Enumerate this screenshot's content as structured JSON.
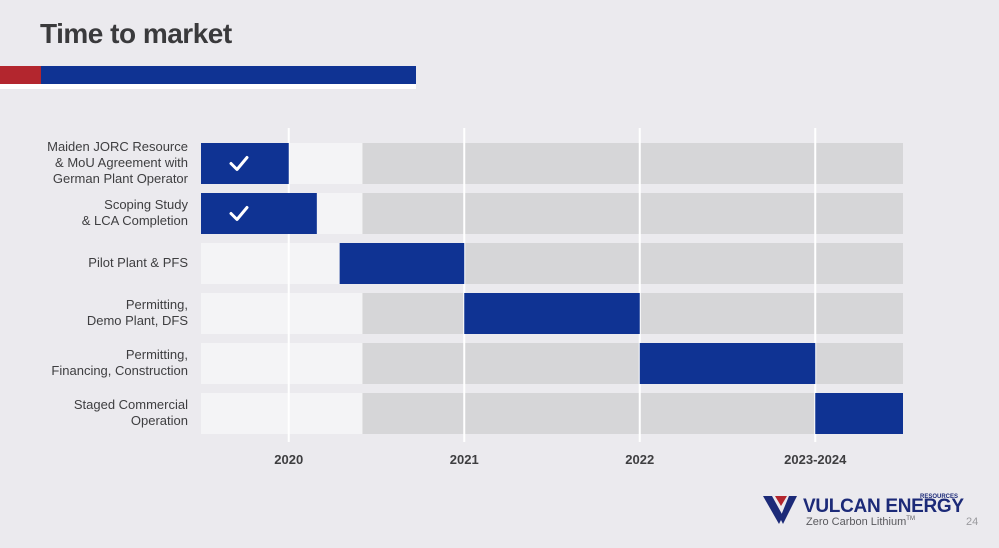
{
  "header": {
    "title": "Time to market"
  },
  "chart_data": {
    "type": "gantt",
    "x_axis": {
      "ticks": [
        "2020",
        "2021",
        "2022",
        "2023-2024"
      ],
      "range_start": 0.0,
      "range_end": 4.0,
      "tick_positions": [
        0.5,
        1.5,
        2.5,
        3.5
      ]
    },
    "baseline_end": 0.92,
    "tasks": [
      {
        "label": "Maiden JORC Resource\n& MoU Agreement with\nGerman Plant Operator",
        "start": 0.0,
        "end": 0.5,
        "completed": true
      },
      {
        "label": "Scoping Study\n& LCA Completion",
        "start": 0.0,
        "end": 0.66,
        "completed": true
      },
      {
        "label": "Pilot Plant & PFS",
        "start": 0.79,
        "end": 1.5,
        "completed": false
      },
      {
        "label": "Permitting,\nDemo Plant, DFS",
        "start": 1.5,
        "end": 2.5,
        "completed": false
      },
      {
        "label": "Permitting,\nFinancing, Construction",
        "start": 2.5,
        "end": 3.5,
        "completed": false
      },
      {
        "label": "Staged Commercial\nOperation",
        "start": 3.5,
        "end": 4.0,
        "completed": false
      }
    ],
    "colors": {
      "active": "#0f3393",
      "past": "#f4f4f6",
      "future": "#d6d6d8",
      "gridline": "#ffffff",
      "check": "#ffffff"
    }
  },
  "footer": {
    "brand": "VULCAN ENERGY",
    "brand_sub": "RESOURCES",
    "tagline": "Zero Carbon Lithium",
    "tm": "TM",
    "page_number": "24"
  }
}
